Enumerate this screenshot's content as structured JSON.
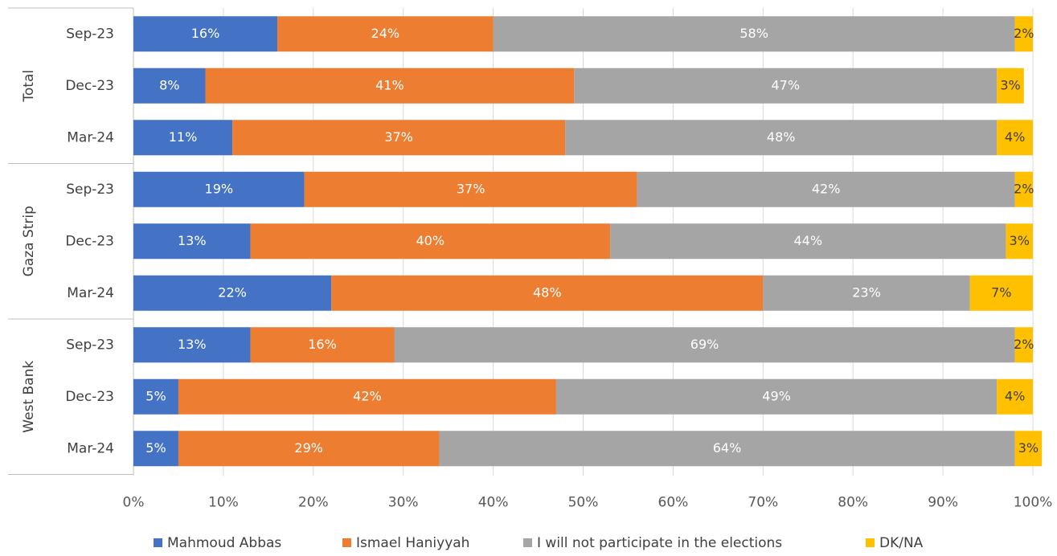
{
  "chart_data": {
    "type": "bar",
    "orientation": "horizontal",
    "stacked": true,
    "percent": true,
    "groups": [
      {
        "name": "Total",
        "rows": [
          {
            "label": "Sep-23",
            "values": [
              16,
              24,
              58,
              2
            ]
          },
          {
            "label": "Dec-23",
            "values": [
              8,
              41,
              47,
              3
            ]
          },
          {
            "label": "Mar-24",
            "values": [
              11,
              37,
              48,
              4
            ]
          }
        ]
      },
      {
        "name": "Gaza Strip",
        "rows": [
          {
            "label": "Sep-23",
            "values": [
              19,
              37,
              42,
              2
            ]
          },
          {
            "label": "Dec-23",
            "values": [
              13,
              40,
              44,
              3
            ]
          },
          {
            "label": "Mar-24",
            "values": [
              22,
              48,
              23,
              7
            ]
          }
        ]
      },
      {
        "name": "West Bank",
        "rows": [
          {
            "label": "Sep-23",
            "values": [
              13,
              16,
              69,
              2
            ]
          },
          {
            "label": "Dec-23",
            "values": [
              5,
              42,
              49,
              4
            ]
          },
          {
            "label": "Mar-24",
            "values": [
              5,
              29,
              64,
              3
            ]
          }
        ]
      }
    ],
    "series": [
      {
        "name": "Mahmoud Abbas",
        "color": "#4472c4",
        "label_color": "#ffffff"
      },
      {
        "name": "Ismael Haniyyah",
        "color": "#ed7d31",
        "label_color": "#ffffff"
      },
      {
        "name": "I will not participate in the elections",
        "color": "#a5a5a5",
        "label_color": "#ffffff"
      },
      {
        "name": "DK/NA",
        "color": "#ffc000",
        "label_color": "#404040"
      }
    ],
    "x_ticks": [
      "0%",
      "10%",
      "20%",
      "30%",
      "40%",
      "50%",
      "60%",
      "70%",
      "80%",
      "90%",
      "100%"
    ],
    "xlim": [
      0,
      100
    ],
    "grid": true,
    "legend_position": "bottom"
  }
}
